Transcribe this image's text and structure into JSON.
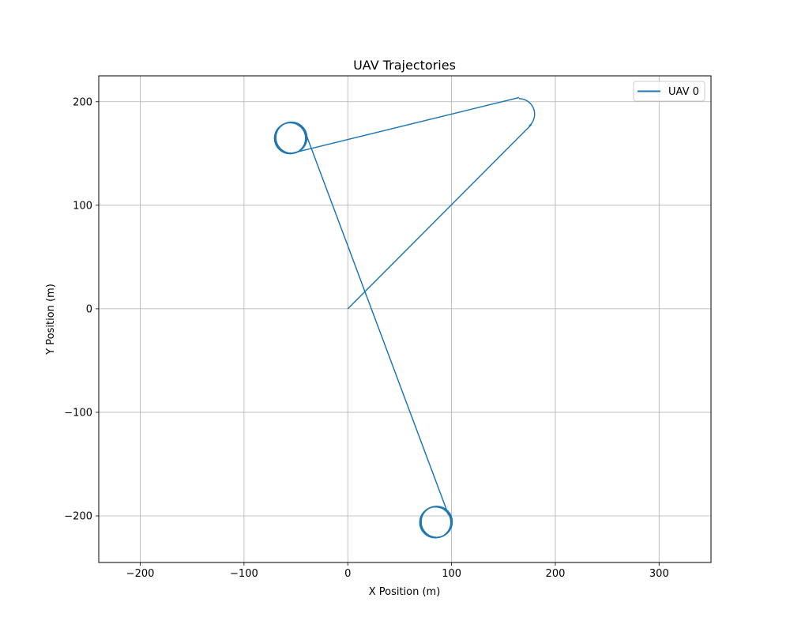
{
  "chart_data": {
    "type": "line",
    "title": "UAV Trajectories",
    "xlabel": "X Position (m)",
    "ylabel": "Y Position (m)",
    "xlim": [
      -240,
      350
    ],
    "ylim": [
      -245,
      225
    ],
    "xticks": [
      -200,
      -100,
      0,
      100,
      200,
      300
    ],
    "yticks": [
      -200,
      -100,
      0,
      100,
      200
    ],
    "xtick_labels": [
      "−200",
      "−100",
      "0",
      "100",
      "200",
      "300"
    ],
    "ytick_labels": [
      "−200",
      "−100",
      "0",
      "100",
      "200"
    ],
    "grid": true,
    "legend_position": "top-right",
    "series_color": "#1f77b4",
    "series": [
      {
        "name": "UAV 0",
        "segments": [
          {
            "kind": "line",
            "points": [
              [
                0,
                0
              ],
              [
                177,
                178
              ]
            ]
          },
          {
            "kind": "arc",
            "center": [
              165,
              188
            ],
            "radius": 15,
            "start_deg": -50,
            "end_deg": 90,
            "direction": "ccw"
          },
          {
            "kind": "line",
            "points": [
              [
                165,
                204
              ],
              [
                -55,
                150
              ]
            ]
          },
          {
            "kind": "circle",
            "center": [
              -55,
              165
            ],
            "radius": 15,
            "loops": 3
          },
          {
            "kind": "line",
            "points": [
              [
                -40,
                168
              ],
              [
                97,
                -199
              ]
            ]
          },
          {
            "kind": "circle",
            "center": [
              85,
              -206
            ],
            "radius": 15,
            "loops": 3
          }
        ]
      }
    ]
  }
}
